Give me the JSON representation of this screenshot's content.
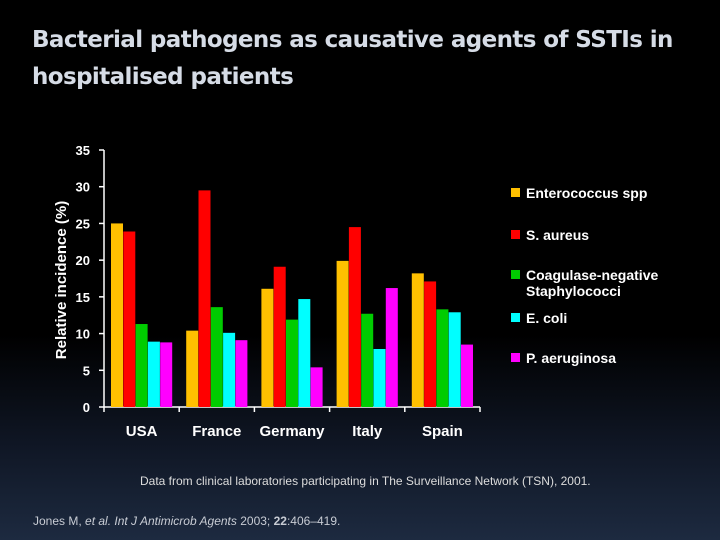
{
  "slide": {
    "title": "Bacterial pathogens as causative agents of SSTIs in hospitalised patients"
  },
  "chart_data": {
    "type": "bar",
    "title": "",
    "xlabel": "",
    "ylabel": "Relative incidence (%)",
    "ylim": [
      0,
      35
    ],
    "yticks": [
      0,
      5,
      10,
      15,
      20,
      25,
      30,
      35
    ],
    "grid": false,
    "legend_position": "right",
    "categories": [
      "USA",
      "France",
      "Germany",
      "Italy",
      "Spain"
    ],
    "series": [
      {
        "name": "Enterococcus spp",
        "color": "#ffc000",
        "values": [
          25.0,
          10.4,
          16.1,
          19.9,
          18.2
        ]
      },
      {
        "name": "S. aureus",
        "color": "#ff0000",
        "values": [
          23.9,
          29.5,
          19.1,
          24.5,
          17.1
        ]
      },
      {
        "name": "Coagulase-negative Staphylococci",
        "color": "#00cc00",
        "values": [
          11.3,
          13.6,
          11.9,
          12.7,
          13.3
        ]
      },
      {
        "name": "E. coli",
        "color": "#00ffff",
        "values": [
          8.9,
          10.1,
          14.7,
          7.9,
          12.9
        ]
      },
      {
        "name": "P. aeruginosa",
        "color": "#ff00ff",
        "values": [
          8.8,
          9.1,
          5.4,
          16.2,
          8.5
        ]
      }
    ],
    "legend_lines": [
      [
        "Enterococcus spp"
      ],
      [
        "S. aureus"
      ],
      [
        "Coagulase-negative",
        "Staphylococci"
      ],
      [
        "E. coli"
      ],
      [
        "P. aeruginosa"
      ]
    ]
  },
  "footer": {
    "source": "Data from clinical laboratories participating in The Surveillance Network (TSN), 2001.",
    "citation_author": "Jones M, ",
    "citation_journal": "et al. Int J Antimicrob Agents",
    "citation_year": " 2003; ",
    "citation_volume": "22",
    "citation_pages": ":406–419."
  }
}
